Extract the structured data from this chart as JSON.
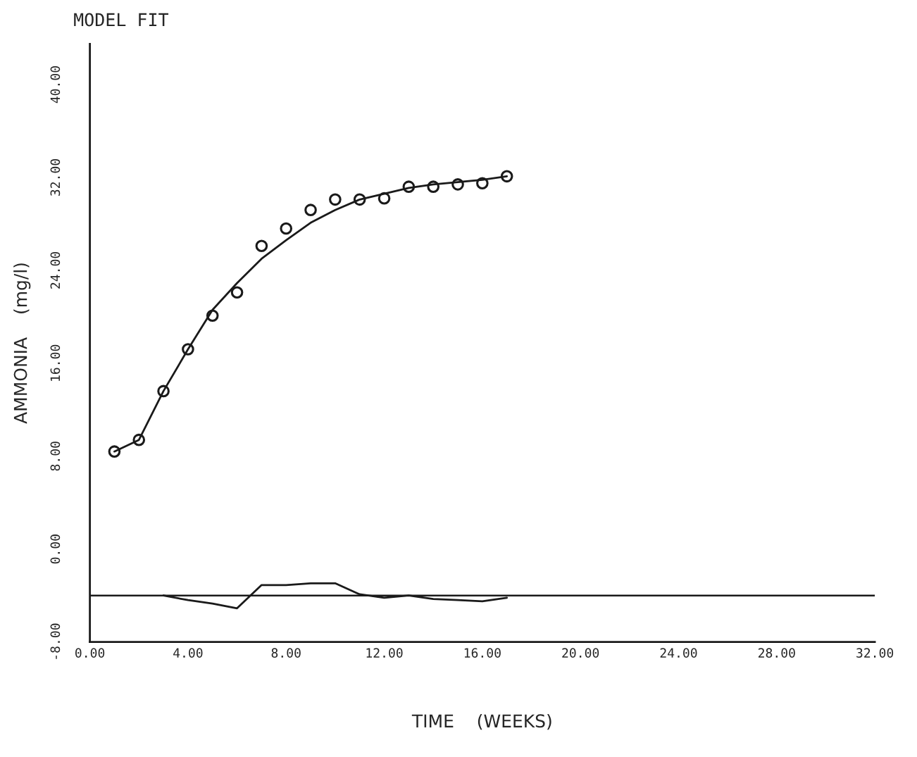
{
  "chart_data": {
    "type": "line",
    "title": "MODEL FIT",
    "xlabel": "TIME    (WEEKS)",
    "ylabel": "AMMONIA    (mg/l)",
    "xlim": [
      0,
      32
    ],
    "xticks": [
      {
        "value": 0,
        "label": "0.00"
      },
      {
        "value": 4,
        "label": "4.00"
      },
      {
        "value": 8,
        "label": "8.00"
      },
      {
        "value": 12,
        "label": "12.00"
      },
      {
        "value": 16,
        "label": "16.00"
      },
      {
        "value": 20,
        "label": "20.00"
      },
      {
        "value": 24,
        "label": "24.00"
      },
      {
        "value": 28,
        "label": "28.00"
      },
      {
        "value": 32,
        "label": "32.00"
      }
    ],
    "ylim": [
      -8,
      43.5
    ],
    "yticks": [
      {
        "value": -8,
        "label": "-8.00"
      },
      {
        "value": 0,
        "label": "0.00"
      },
      {
        "value": 8,
        "label": "8.00"
      },
      {
        "value": 16,
        "label": "16.00"
      },
      {
        "value": 24,
        "label": "24.00"
      },
      {
        "value": 32,
        "label": "32.00"
      },
      {
        "value": 40,
        "label": "40.00"
      }
    ],
    "grid": false,
    "legend": false,
    "series": [
      {
        "type": "scatter",
        "marker": "circle",
        "color": "#1a1a1a",
        "x": [
          1,
          2,
          3,
          4,
          5,
          6,
          7,
          8,
          9,
          10,
          11,
          12,
          13,
          14,
          15,
          16,
          17
        ],
        "values": [
          8.4,
          9.4,
          13.6,
          17.2,
          20.1,
          22.1,
          26.1,
          27.6,
          29.2,
          30.1,
          30.1,
          30.2,
          31.2,
          31.2,
          31.4,
          31.5,
          32.1
        ]
      },
      {
        "line_style": "solid",
        "color": "#1a1a1a",
        "x": [
          1,
          2,
          3,
          4,
          5,
          6,
          7,
          8,
          9,
          10,
          11,
          12,
          13,
          14,
          15,
          16,
          17
        ],
        "values": [
          8.4,
          9.4,
          13.6,
          17.2,
          20.6,
          22.9,
          25.0,
          26.6,
          28.1,
          29.2,
          30.1,
          30.6,
          31.1,
          31.4,
          31.6,
          31.8,
          32.1
        ]
      },
      {
        "line_style": "solid",
        "color": "#1a1a1a",
        "x": [
          3,
          4,
          5,
          6,
          7,
          8,
          9,
          10,
          11,
          12,
          13,
          14,
          15,
          16,
          17
        ],
        "values": [
          -4.0,
          -4.4,
          -4.7,
          -5.1,
          -3.1,
          -3.1,
          -2.95,
          -2.95,
          -3.9,
          -4.2,
          -4.0,
          -4.3,
          -4.4,
          -4.5,
          -4.2
        ]
      }
    ],
    "ref_lines": [
      {
        "axis": "y",
        "value": -4,
        "color": "#1a1a1a",
        "line_style": "solid"
      }
    ]
  }
}
